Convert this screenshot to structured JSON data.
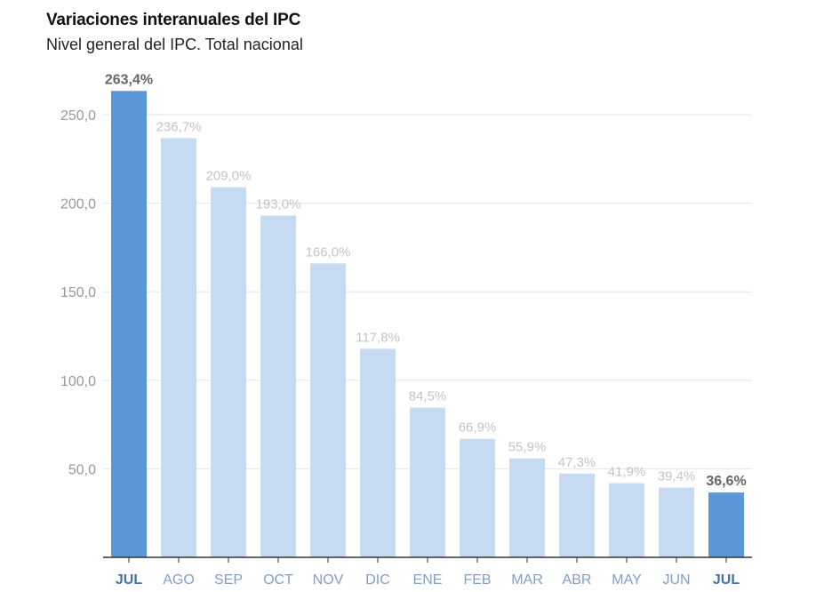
{
  "chart_data": {
    "type": "bar",
    "title": "Variaciones interanuales del IPC",
    "subtitle": "Nivel general del IPC. Total nacional",
    "xlabel": "",
    "ylabel": "",
    "ylim": [
      0,
      250
    ],
    "yticks": [
      50,
      100,
      150,
      200,
      250
    ],
    "ytick_labels": [
      "50,0",
      "100,0",
      "150,0",
      "200,0",
      "250,0"
    ],
    "grid": true,
    "categories": [
      "JUL",
      "AGO",
      "SEP",
      "OCT",
      "NOV",
      "DIC",
      "ENE",
      "FEB",
      "MAR",
      "ABR",
      "MAY",
      "JUN",
      "JUL"
    ],
    "values": [
      263.4,
      236.7,
      209.0,
      193.0,
      166.0,
      117.8,
      84.5,
      66.9,
      55.9,
      47.3,
      41.9,
      39.4,
      36.6
    ],
    "value_labels": [
      "263,4%",
      "236,7%",
      "209,0%",
      "193,0%",
      "166,0%",
      "117,8%",
      "84,5%",
      "66,9%",
      "55,9%",
      "47,3%",
      "41,9%",
      "39,4%",
      "36,6%"
    ],
    "highlighted": [
      true,
      false,
      false,
      false,
      false,
      false,
      false,
      false,
      false,
      false,
      false,
      false,
      true
    ],
    "colors": {
      "highlight": "#5b96d9",
      "normal": "#c6dbf2",
      "grid": "#e6e6e6",
      "axis": "#333333"
    }
  }
}
